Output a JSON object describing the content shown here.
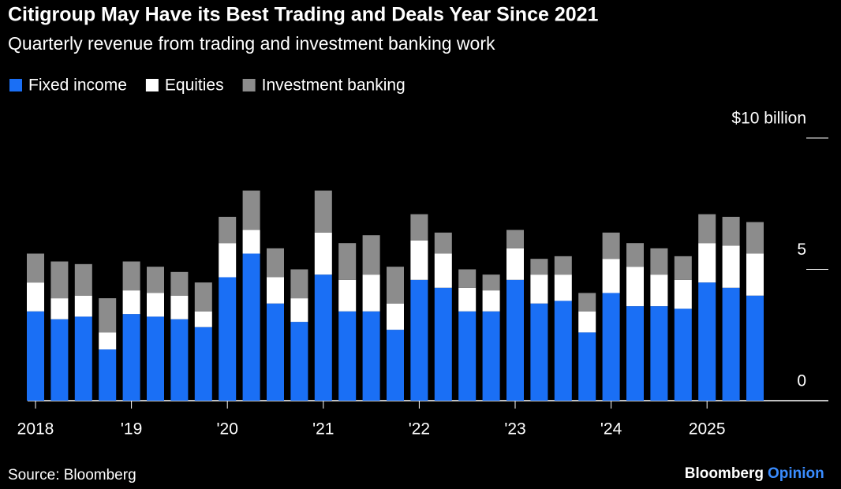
{
  "chart_data": {
    "type": "stacked_bar",
    "title": "Citigroup May Have its Best Trading and Deals Year Since 2021",
    "subtitle": "Quarterly revenue from trading and investment banking work",
    "categories": [
      "2018",
      null,
      null,
      null,
      "'19",
      null,
      null,
      null,
      "'20",
      null,
      null,
      null,
      "'21",
      null,
      null,
      null,
      "'22",
      null,
      null,
      null,
      "'23",
      null,
      null,
      null,
      "'24",
      null,
      null,
      null,
      "2025",
      null,
      null
    ],
    "series": [
      {
        "name": "Fixed income",
        "color": "#1a6ff5",
        "values": [
          3.4,
          3.1,
          3.2,
          1.95,
          3.3,
          3.2,
          3.1,
          2.8,
          4.7,
          5.6,
          3.7,
          3.0,
          4.8,
          3.4,
          3.4,
          2.7,
          4.6,
          4.3,
          3.4,
          3.4,
          4.6,
          3.7,
          3.8,
          2.6,
          4.1,
          3.6,
          3.6,
          3.5,
          4.5,
          4.3,
          4.0
        ]
      },
      {
        "name": "Equities",
        "color": "#ffffff",
        "values": [
          1.1,
          0.8,
          0.8,
          0.65,
          0.9,
          0.9,
          0.9,
          0.6,
          1.3,
          0.9,
          1.0,
          0.9,
          1.6,
          1.2,
          1.4,
          1.0,
          1.5,
          1.3,
          0.9,
          0.8,
          1.2,
          1.1,
          1.0,
          0.8,
          1.3,
          1.5,
          1.2,
          1.1,
          1.5,
          1.6,
          1.6
        ]
      },
      {
        "name": "Investment banking",
        "color": "#8c8c8c",
        "values": [
          1.1,
          1.4,
          1.2,
          1.3,
          1.1,
          1.0,
          0.9,
          1.1,
          1.0,
          1.5,
          1.1,
          1.1,
          1.6,
          1.4,
          1.5,
          1.4,
          1.0,
          0.8,
          0.7,
          0.6,
          0.7,
          0.6,
          0.7,
          0.7,
          1.0,
          0.9,
          1.0,
          0.9,
          1.1,
          1.1,
          1.2
        ]
      }
    ],
    "ylim": [
      0,
      10
    ],
    "yticks": [
      0,
      5,
      {
        "value": 10,
        "label": "$10 billion"
      }
    ],
    "source": "Source: Bloomberg"
  },
  "logo": {
    "brand": "Bloomberg",
    "suffix": "Opinion"
  }
}
